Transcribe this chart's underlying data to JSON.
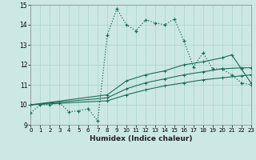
{
  "bg_color": "#cce8e4",
  "grid_color": "#aad4cc",
  "line_color": "#1a6b5a",
  "xlabel": "Humidex (Indice chaleur)",
  "xlim": [
    0,
    23
  ],
  "ylim": [
    9,
    15
  ],
  "yticks": [
    9,
    10,
    11,
    12,
    13,
    14,
    15
  ],
  "xticks": [
    0,
    1,
    2,
    3,
    4,
    5,
    6,
    7,
    8,
    9,
    10,
    11,
    12,
    13,
    14,
    15,
    16,
    17,
    18,
    19,
    20,
    21,
    22,
    23
  ],
  "series_dotted": {
    "x": [
      0,
      1,
      2,
      3,
      4,
      5,
      6,
      7,
      8,
      9,
      10,
      11,
      12,
      13,
      14,
      15,
      16,
      17,
      18,
      19,
      20,
      21,
      22,
      23
    ],
    "y": [
      9.6,
      10.0,
      10.0,
      10.1,
      9.65,
      9.7,
      9.8,
      9.2,
      13.5,
      14.8,
      14.0,
      13.7,
      14.25,
      14.1,
      14.0,
      14.3,
      13.2,
      11.9,
      12.6,
      11.8,
      11.8,
      11.5,
      11.1,
      11.0
    ]
  },
  "series_solid1": {
    "x": [
      0,
      8,
      10,
      12,
      14,
      16,
      18,
      20,
      21,
      22,
      23
    ],
    "y": [
      10.0,
      10.5,
      11.2,
      11.5,
      11.7,
      12.0,
      12.15,
      12.35,
      12.5,
      11.8,
      11.1
    ]
  },
  "series_solid2": {
    "x": [
      0,
      8,
      10,
      12,
      14,
      16,
      18,
      20,
      22,
      23
    ],
    "y": [
      10.0,
      10.35,
      10.8,
      11.1,
      11.3,
      11.5,
      11.65,
      11.8,
      11.85,
      11.85
    ]
  },
  "series_solid3": {
    "x": [
      0,
      8,
      10,
      12,
      14,
      16,
      18,
      20,
      22,
      23
    ],
    "y": [
      10.0,
      10.2,
      10.5,
      10.75,
      10.95,
      11.1,
      11.25,
      11.35,
      11.45,
      11.5
    ]
  }
}
